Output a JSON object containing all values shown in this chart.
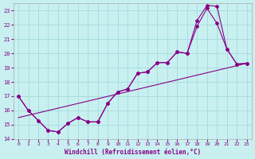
{
  "xlabel": "Windchill (Refroidissement éolien,°C)",
  "bg_color": "#c8f0f0",
  "grid_color": "#aadddd",
  "line_color": "#880088",
  "xlim": [
    -0.5,
    23.5
  ],
  "ylim": [
    14,
    23.5
  ],
  "xticks": [
    0,
    1,
    2,
    3,
    4,
    5,
    6,
    7,
    8,
    9,
    10,
    11,
    12,
    13,
    14,
    15,
    16,
    17,
    18,
    19,
    20,
    21,
    22,
    23
  ],
  "yticks": [
    14,
    15,
    16,
    17,
    18,
    19,
    20,
    21,
    22,
    23
  ],
  "line1_x": [
    0,
    1,
    2,
    3,
    4,
    5,
    6,
    7,
    8,
    9,
    10,
    11,
    12,
    13,
    14,
    15,
    16,
    17,
    18,
    19,
    20,
    21,
    22,
    23
  ],
  "line1_y": [
    17.0,
    16.0,
    15.3,
    14.6,
    14.5,
    15.1,
    15.5,
    15.2,
    15.2,
    16.5,
    17.3,
    17.5,
    18.6,
    18.7,
    19.35,
    19.35,
    20.1,
    20.0,
    21.9,
    23.15,
    22.1,
    20.3,
    19.25,
    19.3
  ],
  "line2_x": [
    0,
    1,
    2,
    3,
    4,
    5,
    6,
    7,
    8,
    9,
    10,
    11,
    12,
    13,
    14,
    15,
    16,
    17,
    18,
    19,
    20,
    21,
    22,
    23
  ],
  "line2_y": [
    17.0,
    16.0,
    15.3,
    14.6,
    14.5,
    15.1,
    15.5,
    15.2,
    15.2,
    16.5,
    17.3,
    17.5,
    18.6,
    18.7,
    19.35,
    19.35,
    20.1,
    20.0,
    22.3,
    23.35,
    23.3,
    20.3,
    19.25,
    19.3
  ],
  "line3_x": [
    0,
    23
  ],
  "line3_y": [
    15.5,
    19.3
  ],
  "marker": "D",
  "markersize": 2.0,
  "linewidth": 0.8
}
